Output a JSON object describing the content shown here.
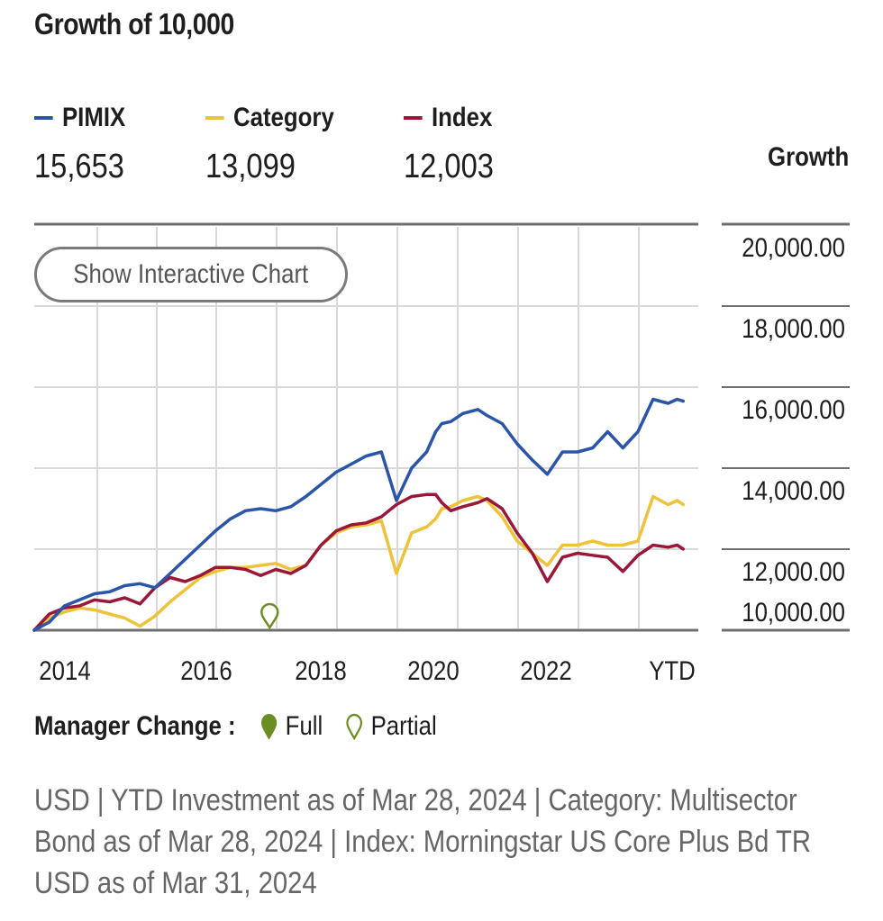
{
  "title": "Growth of 10,000",
  "legend": [
    {
      "name": "PIMIX",
      "value": "15,653",
      "color": "#2a55a8"
    },
    {
      "name": "Category",
      "value": "13,099",
      "color": "#eec33a"
    },
    {
      "name": "Index",
      "value": "12,003",
      "color": "#9b1738"
    }
  ],
  "growth_label": "Growth",
  "interactive_button": "Show Interactive Chart",
  "manager_change": {
    "label": "Manager Change :",
    "full": "Full",
    "partial": "Partial",
    "full_color": "#6b8e23",
    "partial_color": "#6b8e23"
  },
  "footnote": "USD | YTD Investment as of Mar 28, 2024 | Category: Multisector Bond as of Mar 28, 2024 | Index: Morningstar US Core Plus Bd TR USD as of Mar 31, 2024",
  "chart_data": {
    "type": "line",
    "title": "Growth of 10,000",
    "ylabel": "Growth",
    "ylim": [
      10000,
      20000
    ],
    "xlim": [
      2013.5,
      2024.5
    ],
    "y_ticks": [
      "20,000.00",
      "18,000.00",
      "16,000.00",
      "14,000.00",
      "12,000.00",
      "10,000.00"
    ],
    "x_ticks": [
      "2014",
      "2016",
      "2018",
      "2020",
      "2022",
      "YTD"
    ],
    "grid": true,
    "legend_position": "top",
    "manager_change_markers": [
      {
        "x": 2017.4,
        "type": "Partial"
      }
    ],
    "series": [
      {
        "name": "PIMIX",
        "color": "#2a55a8",
        "x": [
          2013.5,
          2013.75,
          2014.0,
          2014.25,
          2014.5,
          2014.75,
          2015.0,
          2015.25,
          2015.5,
          2015.75,
          2016.0,
          2016.25,
          2016.5,
          2016.75,
          2017.0,
          2017.25,
          2017.5,
          2017.75,
          2018.0,
          2018.25,
          2018.5,
          2018.75,
          2019.0,
          2019.25,
          2019.5,
          2019.75,
          2020.0,
          2020.15,
          2020.25,
          2020.4,
          2020.6,
          2020.85,
          2021.0,
          2021.25,
          2021.5,
          2021.75,
          2022.0,
          2022.25,
          2022.5,
          2022.75,
          2023.0,
          2023.25,
          2023.5,
          2023.75,
          2024.0,
          2024.15,
          2024.25
        ],
        "values": [
          10000,
          10200,
          10600,
          10750,
          10900,
          10950,
          11100,
          11150,
          11050,
          11400,
          11750,
          12100,
          12450,
          12750,
          12950,
          13000,
          12950,
          13050,
          13300,
          13600,
          13900,
          14100,
          14300,
          14400,
          13200,
          14000,
          14400,
          14900,
          15100,
          15150,
          15350,
          15450,
          15300,
          15100,
          14600,
          14200,
          13850,
          14400,
          14400,
          14500,
          14900,
          14500,
          14900,
          15700,
          15600,
          15700,
          15653
        ]
      },
      {
        "name": "Category",
        "color": "#eec33a",
        "x": [
          2013.5,
          2013.75,
          2014.0,
          2014.25,
          2014.5,
          2014.75,
          2015.0,
          2015.25,
          2015.5,
          2015.75,
          2016.0,
          2016.25,
          2016.5,
          2016.75,
          2017.0,
          2017.25,
          2017.5,
          2017.75,
          2018.0,
          2018.25,
          2018.5,
          2018.75,
          2019.0,
          2019.25,
          2019.5,
          2019.75,
          2020.0,
          2020.15,
          2020.25,
          2020.4,
          2020.6,
          2020.85,
          2021.0,
          2021.25,
          2021.5,
          2021.75,
          2022.0,
          2022.25,
          2022.5,
          2022.75,
          2023.0,
          2023.25,
          2023.5,
          2023.75,
          2024.0,
          2024.15,
          2024.25
        ],
        "values": [
          10000,
          10300,
          10450,
          10550,
          10500,
          10400,
          10300,
          10100,
          10350,
          10700,
          11000,
          11300,
          11450,
          11550,
          11550,
          11600,
          11650,
          11500,
          11600,
          12100,
          12400,
          12550,
          12600,
          12700,
          11400,
          12400,
          12550,
          12750,
          13000,
          13050,
          13200,
          13300,
          13200,
          12800,
          12200,
          11900,
          11600,
          12100,
          12100,
          12200,
          12100,
          12100,
          12200,
          13300,
          13100,
          13200,
          13099
        ]
      },
      {
        "name": "Index",
        "color": "#9b1738",
        "x": [
          2013.5,
          2013.75,
          2014.0,
          2014.25,
          2014.5,
          2014.75,
          2015.0,
          2015.25,
          2015.5,
          2015.75,
          2016.0,
          2016.25,
          2016.5,
          2016.75,
          2017.0,
          2017.25,
          2017.5,
          2017.75,
          2018.0,
          2018.25,
          2018.5,
          2018.75,
          2019.0,
          2019.25,
          2019.5,
          2019.75,
          2020.0,
          2020.15,
          2020.25,
          2020.4,
          2020.6,
          2020.85,
          2021.0,
          2021.25,
          2021.5,
          2021.75,
          2022.0,
          2022.25,
          2022.5,
          2022.75,
          2023.0,
          2023.25,
          2023.5,
          2023.75,
          2024.0,
          2024.15,
          2024.25
        ],
        "values": [
          10000,
          10400,
          10550,
          10600,
          10750,
          10700,
          10800,
          10650,
          11050,
          11300,
          11200,
          11350,
          11550,
          11550,
          11500,
          11350,
          11500,
          11400,
          11600,
          12100,
          12450,
          12600,
          12650,
          12800,
          13100,
          13300,
          13350,
          13350,
          13150,
          12950,
          13050,
          13150,
          13250,
          13000,
          12400,
          11900,
          11200,
          11800,
          11900,
          11850,
          11800,
          11450,
          11850,
          12100,
          12050,
          12100,
          12003
        ]
      }
    ]
  }
}
